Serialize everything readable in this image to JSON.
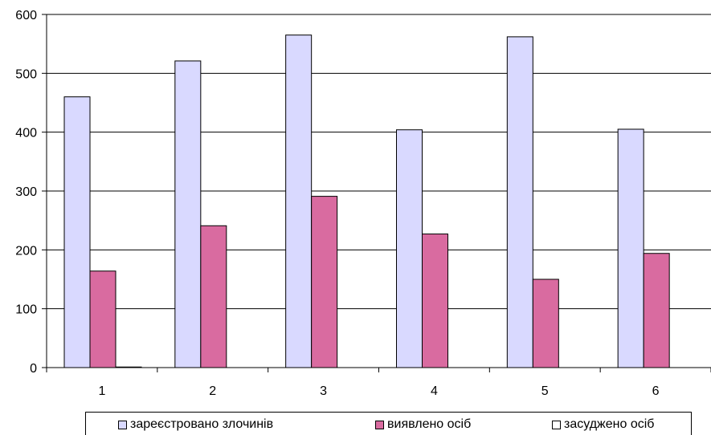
{
  "chart_data": {
    "type": "bar",
    "categories": [
      "1",
      "2",
      "3",
      "4",
      "5",
      "6"
    ],
    "series": [
      {
        "name": "зареєстровано злочинів",
        "color": "#d9d9ff",
        "values": [
          460,
          521,
          565,
          404,
          562,
          405
        ]
      },
      {
        "name": "виявлено осіб",
        "color": "#d96ba0",
        "values": [
          164,
          241,
          291,
          227,
          150,
          194
        ]
      },
      {
        "name": "засуджено осіб",
        "color": "#ffffff",
        "values": [
          1,
          0,
          0,
          0,
          0,
          0
        ]
      }
    ],
    "yticks": [
      "0",
      "100",
      "200",
      "300",
      "400",
      "500",
      "600"
    ],
    "ylim": [
      0,
      600
    ],
    "grid": true,
    "legend_position": "bottom"
  }
}
